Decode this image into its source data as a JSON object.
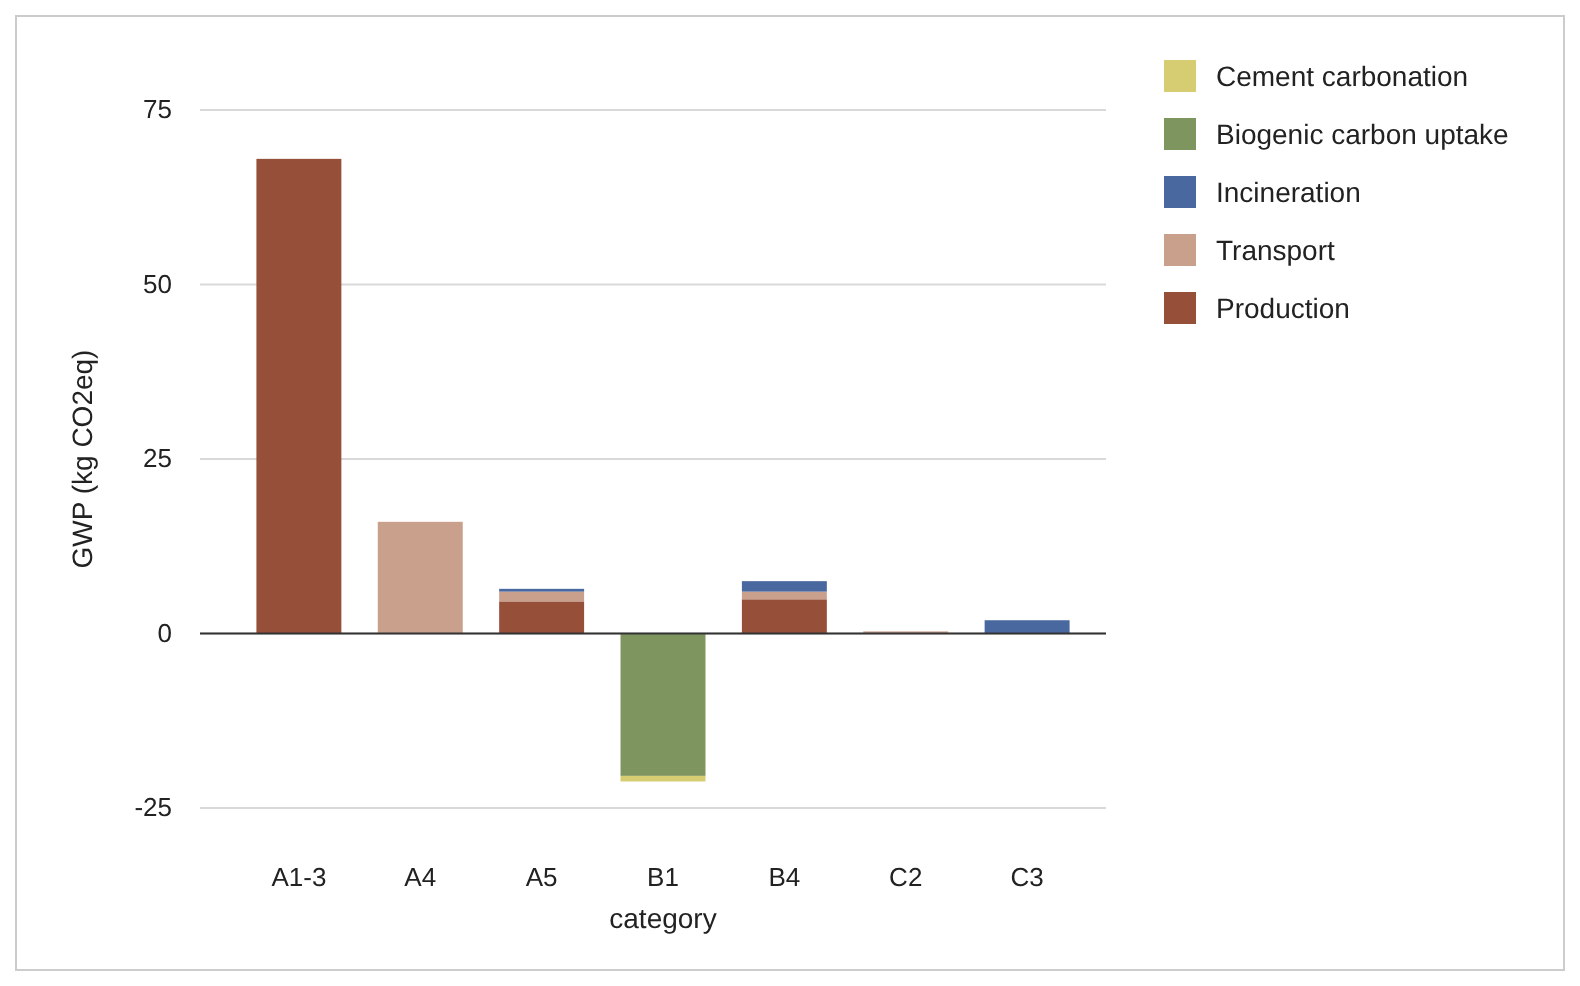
{
  "chart_data": {
    "type": "bar",
    "stacked": true,
    "xlabel": "category",
    "ylabel": "GWP (kg CO2eq)",
    "categories": [
      "A1-3",
      "A4",
      "A5",
      "B1",
      "B4",
      "C2",
      "C3"
    ],
    "series": [
      {
        "name": "Production",
        "color": "#96503a",
        "values": [
          68,
          0,
          4.6,
          0,
          4.9,
          0,
          0
        ]
      },
      {
        "name": "Transport",
        "color": "#c9a08c",
        "values": [
          0,
          16,
          1.4,
          0,
          1.1,
          0.3,
          0
        ]
      },
      {
        "name": "Incineration",
        "color": "#4a68a0",
        "values": [
          0,
          0,
          0.4,
          0,
          1.5,
          0,
          1.9
        ]
      },
      {
        "name": "Biogenic carbon uptake",
        "color": "#7f9560",
        "values": [
          0,
          0,
          0,
          -20.4,
          0,
          0,
          0
        ]
      },
      {
        "name": "Cement carbonation",
        "color": "#d6cc72",
        "values": [
          0,
          0,
          0,
          -0.8,
          0,
          0,
          0
        ]
      }
    ],
    "ylim": [
      -25,
      75
    ],
    "yticks": [
      -25,
      0,
      25,
      50,
      75
    ],
    "grid": "y",
    "legend": "top right"
  }
}
